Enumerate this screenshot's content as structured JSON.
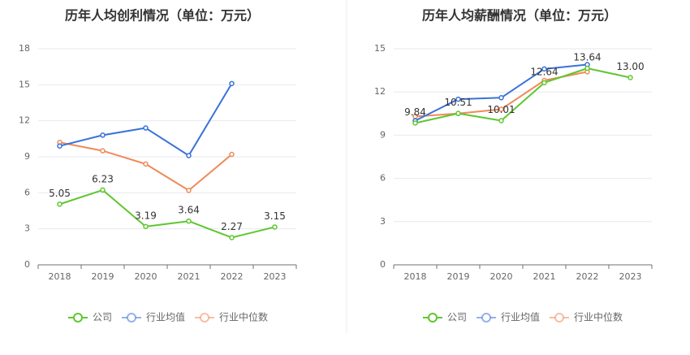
{
  "chart_data": [
    {
      "type": "line",
      "title": "历年人均创利情况（单位：万元）",
      "categories": [
        "2018",
        "2019",
        "2020",
        "2021",
        "2022",
        "2023"
      ],
      "ylim": [
        0,
        18
      ],
      "yticks": [
        0,
        3,
        6,
        9,
        12,
        15,
        18
      ],
      "grid": true,
      "legend_placement": "bottom",
      "series": [
        {
          "name": "公司",
          "color": "#5ec72f",
          "values": [
            5.05,
            6.23,
            3.19,
            3.64,
            2.27,
            3.15
          ],
          "labels": [
            "5.05",
            "6.23",
            "3.19",
            "3.64",
            "2.27",
            "3.15"
          ]
        },
        {
          "name": "行业均值",
          "color": "#3a72d8",
          "values": [
            9.9,
            10.8,
            11.4,
            9.1,
            15.1,
            null
          ]
        },
        {
          "name": "行业中位数",
          "color": "#ef8a5a",
          "values": [
            10.2,
            9.5,
            8.4,
            6.2,
            9.2,
            null
          ]
        }
      ]
    },
    {
      "type": "line",
      "title": "历年人均薪酬情况（单位：万元）",
      "categories": [
        "2018",
        "2019",
        "2020",
        "2021",
        "2022",
        "2023"
      ],
      "ylim": [
        0,
        15
      ],
      "yticks": [
        0,
        3,
        6,
        9,
        12,
        15
      ],
      "grid": true,
      "legend_placement": "bottom",
      "series": [
        {
          "name": "公司",
          "color": "#5ec72f",
          "values": [
            9.84,
            10.51,
            10.01,
            12.64,
            13.64,
            13.0
          ],
          "labels": [
            "9.84",
            "10.51",
            "10.01",
            "12.64",
            "13.64",
            "13.00"
          ]
        },
        {
          "name": "行业均值",
          "color": "#3a72d8",
          "values": [
            10.0,
            11.5,
            11.6,
            13.6,
            13.9,
            null
          ]
        },
        {
          "name": "行业中位数",
          "color": "#ef8a5a",
          "values": [
            10.3,
            10.5,
            10.8,
            12.8,
            13.4,
            null
          ]
        }
      ]
    }
  ]
}
